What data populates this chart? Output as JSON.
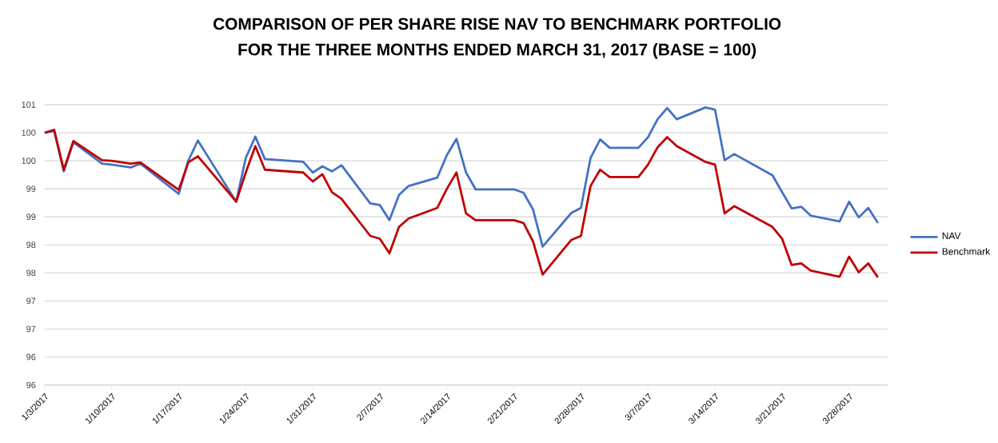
{
  "chart_data": {
    "type": "line",
    "title": "COMPARISON OF PER SHARE RISE NAV TO BENCHMARK PORTFOLIO",
    "subtitle": "FOR THE THREE MONTHS ENDED MARCH 31, 2017 (BASE = 100)",
    "x": [
      "2017-01-03",
      "2017-01-04",
      "2017-01-05",
      "2017-01-06",
      "2017-01-09",
      "2017-01-10",
      "2017-01-12",
      "2017-01-13",
      "2017-01-17",
      "2017-01-18",
      "2017-01-19",
      "2017-01-23",
      "2017-01-24",
      "2017-01-25",
      "2017-01-26",
      "2017-01-30",
      "2017-01-31",
      "2017-02-01",
      "2017-02-02",
      "2017-02-03",
      "2017-02-06",
      "2017-02-07",
      "2017-02-08",
      "2017-02-09",
      "2017-02-10",
      "2017-02-13",
      "2017-02-14",
      "2017-02-15",
      "2017-02-16",
      "2017-02-17",
      "2017-02-21",
      "2017-02-22",
      "2017-02-23",
      "2017-02-24",
      "2017-02-27",
      "2017-02-28",
      "2017-03-01",
      "2017-03-02",
      "2017-03-03",
      "2017-03-06",
      "2017-03-07",
      "2017-03-08",
      "2017-03-09",
      "2017-03-10",
      "2017-03-13",
      "2017-03-14",
      "2017-03-15",
      "2017-03-16",
      "2017-03-20",
      "2017-03-21",
      "2017-03-22",
      "2017-03-23",
      "2017-03-24",
      "2017-03-27",
      "2017-03-28",
      "2017-03-29",
      "2017-03-30",
      "2017-03-31"
    ],
    "series": [
      {
        "name": "NAV",
        "color": "#4472c4",
        "values": [
          100.0,
          100.03,
          99.31,
          99.83,
          99.45,
          99.43,
          99.38,
          99.45,
          98.91,
          99.5,
          99.86,
          98.77,
          99.55,
          99.93,
          99.53,
          99.48,
          99.29,
          99.4,
          99.31,
          99.42,
          98.74,
          98.71,
          98.44,
          98.89,
          99.05,
          99.2,
          99.6,
          99.89,
          99.29,
          98.99,
          98.99,
          98.93,
          98.63,
          97.97,
          98.57,
          98.66,
          99.55,
          99.88,
          99.73,
          99.73,
          99.92,
          100.24,
          100.44,
          100.24,
          100.45,
          100.41,
          99.51,
          99.62,
          99.24,
          98.94,
          98.65,
          98.68,
          98.52,
          98.42,
          98.77,
          98.49,
          98.66,
          98.39
        ]
      },
      {
        "name": "Benchmark",
        "color": "#c00000",
        "values": [
          100.0,
          100.05,
          99.34,
          99.85,
          99.51,
          99.5,
          99.45,
          99.47,
          98.98,
          99.47,
          99.58,
          98.77,
          99.29,
          99.76,
          99.34,
          99.29,
          99.13,
          99.26,
          98.94,
          98.82,
          98.16,
          98.11,
          97.85,
          98.32,
          98.47,
          98.66,
          99.0,
          99.29,
          98.56,
          98.44,
          98.44,
          98.39,
          98.06,
          97.47,
          98.09,
          98.16,
          99.05,
          99.34,
          99.21,
          99.21,
          99.43,
          99.74,
          99.92,
          99.76,
          99.48,
          99.43,
          98.56,
          98.69,
          98.32,
          98.11,
          97.64,
          97.67,
          97.54,
          97.43,
          97.79,
          97.51,
          97.67,
          97.42
        ]
      }
    ],
    "xlim": [
      "2017-01-03",
      "2017-04-01"
    ],
    "xticks": [
      {
        "value": "2017-01-03",
        "label": "1/3/2017"
      },
      {
        "value": "2017-01-10",
        "label": "1/10/2017"
      },
      {
        "value": "2017-01-17",
        "label": "1/17/2017"
      },
      {
        "value": "2017-01-24",
        "label": "1/24/2017"
      },
      {
        "value": "2017-01-31",
        "label": "1/31/2017"
      },
      {
        "value": "2017-02-07",
        "label": "2/7/2017"
      },
      {
        "value": "2017-02-14",
        "label": "2/14/2017"
      },
      {
        "value": "2017-02-21",
        "label": "2/21/2017"
      },
      {
        "value": "2017-02-28",
        "label": "2/28/2017"
      },
      {
        "value": "2017-03-07",
        "label": "3/7/2017"
      },
      {
        "value": "2017-03-14",
        "label": "3/14/2017"
      },
      {
        "value": "2017-03-21",
        "label": "3/21/2017"
      },
      {
        "value": "2017-03-28",
        "label": "3/28/2017"
      }
    ],
    "ylim": [
      95.5,
      100.5
    ],
    "yticks": [
      {
        "value": 95.5,
        "label": "96"
      },
      {
        "value": 96,
        "label": "96"
      },
      {
        "value": 96.5,
        "label": "97"
      },
      {
        "value": 97,
        "label": "97"
      },
      {
        "value": 97.5,
        "label": "98"
      },
      {
        "value": 98,
        "label": "98"
      },
      {
        "value": 98.5,
        "label": "99"
      },
      {
        "value": 99,
        "label": "99"
      },
      {
        "value": 99.5,
        "label": "100"
      },
      {
        "value": 100,
        "label": "100"
      },
      {
        "value": 100.5,
        "label": "101"
      }
    ],
    "grid": "y",
    "legend": "right",
    "marker": "none",
    "line_style": "solid"
  }
}
